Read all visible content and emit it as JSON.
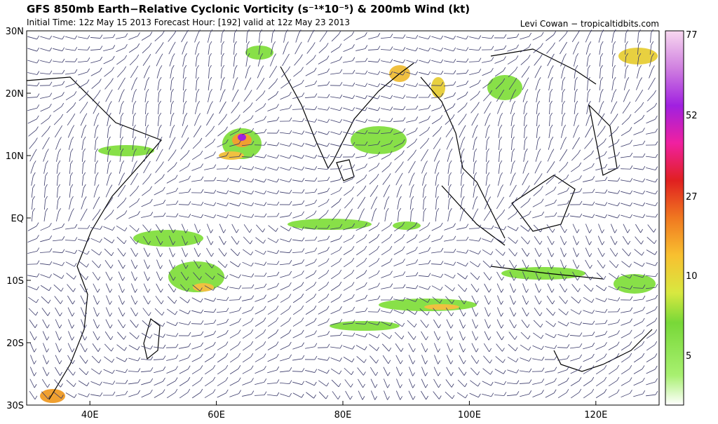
{
  "header": {
    "title": "GFS 850mb Earth−Relative Cyclonic Vorticity (s⁻¹*10⁻⁵) & 200mb Wind (kt)",
    "subtitle": "Initial Time: 12z May 15 2013 Forecast Hour: [192] valid at 12z May 23 2013",
    "credit": "Levi Cowan − tropicaltidbits.com"
  },
  "map": {
    "lat_labels": [
      "30N",
      "20N",
      "10N",
      "EQ",
      "10S",
      "20S",
      "30S"
    ],
    "lon_labels": [
      "40E",
      "60E",
      "80E",
      "100E",
      "120E"
    ]
  },
  "colorbar": {
    "labels": [
      "77",
      "52",
      "27",
      "10",
      "5"
    ]
  }
}
